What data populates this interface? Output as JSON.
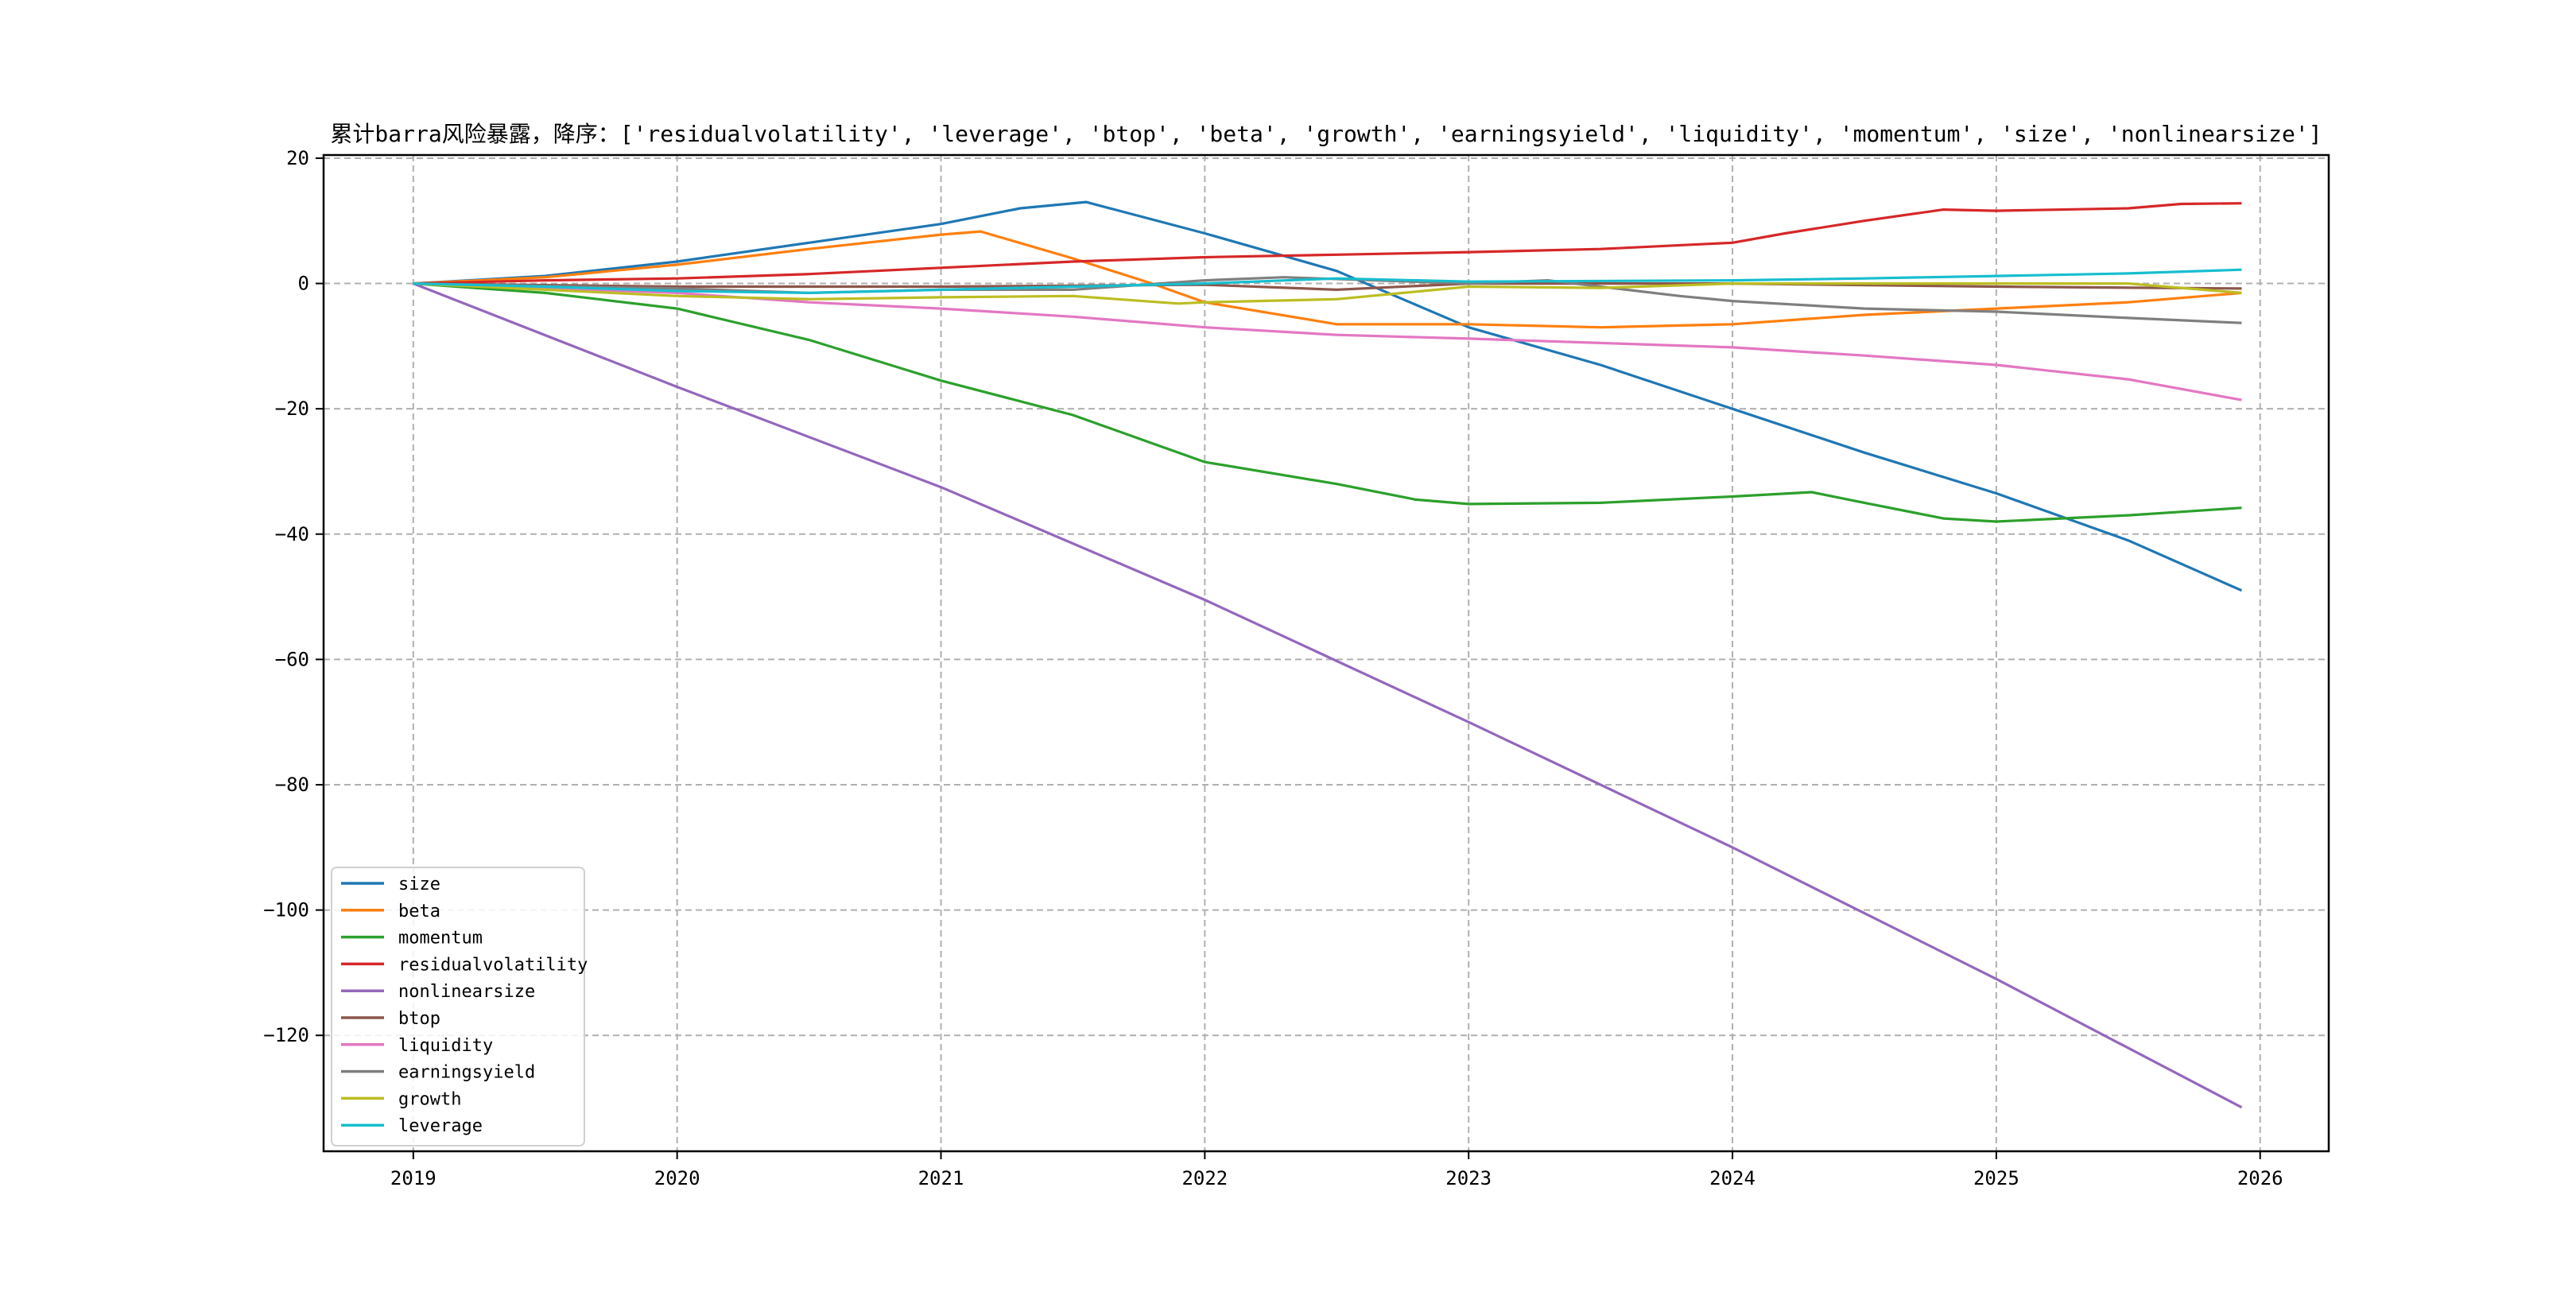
{
  "chart_data": {
    "type": "line",
    "title": "累计barra风险暴露，降序：['residualvolatility', 'leverage', 'btop', 'beta', 'growth', 'earningsyield', 'liquidity', 'momentum', 'size', 'nonlinearsize']",
    "xlabel": "",
    "ylabel": "",
    "xlim": [
      2018.66,
      2026.26
    ],
    "ylim": [
      -138.5,
      20.5
    ],
    "xticks": [
      2019,
      2020,
      2021,
      2022,
      2023,
      2024,
      2025,
      2026
    ],
    "xtick_labels": [
      "2019",
      "2020",
      "2021",
      "2022",
      "2023",
      "2024",
      "2025",
      "2026"
    ],
    "yticks": [
      20,
      0,
      -20,
      -40,
      -60,
      -80,
      -100,
      -120
    ],
    "ytick_labels": [
      "20",
      "0",
      "−20",
      "−40",
      "−60",
      "−80",
      "−100",
      "−120"
    ],
    "grid": true,
    "legend_position": "lower-left",
    "series": [
      {
        "name": "size",
        "color": "#1f77b4",
        "points": [
          [
            2019,
            0
          ],
          [
            2019.5,
            1.2
          ],
          [
            2020,
            3.5
          ],
          [
            2020.5,
            6.5
          ],
          [
            2021,
            9.5
          ],
          [
            2021.3,
            12
          ],
          [
            2021.55,
            13
          ],
          [
            2022,
            8
          ],
          [
            2022.5,
            2
          ],
          [
            2023,
            -7
          ],
          [
            2023.5,
            -13
          ],
          [
            2024,
            -20
          ],
          [
            2024.5,
            -27
          ],
          [
            2025,
            -33.5
          ],
          [
            2025.5,
            -41
          ],
          [
            2025.93,
            -49
          ]
        ]
      },
      {
        "name": "beta",
        "color": "#ff7f0e",
        "points": [
          [
            2019,
            0
          ],
          [
            2019.5,
            1
          ],
          [
            2020,
            3
          ],
          [
            2020.5,
            5.5
          ],
          [
            2021,
            7.8
          ],
          [
            2021.15,
            8.3
          ],
          [
            2021.5,
            4
          ],
          [
            2021.8,
            0
          ],
          [
            2022,
            -3
          ],
          [
            2022.5,
            -6.5
          ],
          [
            2023,
            -6.5
          ],
          [
            2023.5,
            -7
          ],
          [
            2024,
            -6.5
          ],
          [
            2024.5,
            -5
          ],
          [
            2025,
            -4
          ],
          [
            2025.5,
            -3
          ],
          [
            2025.93,
            -1.5
          ]
        ]
      },
      {
        "name": "momentum",
        "color": "#2ca02c",
        "points": [
          [
            2019,
            0
          ],
          [
            2019.5,
            -1.5
          ],
          [
            2020,
            -4
          ],
          [
            2020.5,
            -9
          ],
          [
            2021,
            -15.5
          ],
          [
            2021.5,
            -21
          ],
          [
            2021.8,
            -25.5
          ],
          [
            2022,
            -28.5
          ],
          [
            2022.5,
            -32
          ],
          [
            2022.8,
            -34.5
          ],
          [
            2023,
            -35.2
          ],
          [
            2023.5,
            -35
          ],
          [
            2024,
            -34
          ],
          [
            2024.3,
            -33.3
          ],
          [
            2024.5,
            -35
          ],
          [
            2024.8,
            -37.5
          ],
          [
            2025,
            -38
          ],
          [
            2025.5,
            -37
          ],
          [
            2025.93,
            -35.8
          ]
        ]
      },
      {
        "name": "residualvolatility",
        "color": "#d62728",
        "points": [
          [
            2019,
            0
          ],
          [
            2019.5,
            0.5
          ],
          [
            2020,
            0.8
          ],
          [
            2020.5,
            1.5
          ],
          [
            2021,
            2.5
          ],
          [
            2021.5,
            3.5
          ],
          [
            2022,
            4.2
          ],
          [
            2022.5,
            4.6
          ],
          [
            2023,
            5
          ],
          [
            2023.5,
            5.5
          ],
          [
            2024,
            6.5
          ],
          [
            2024.2,
            8
          ],
          [
            2024.5,
            10
          ],
          [
            2024.8,
            11.8
          ],
          [
            2025,
            11.6
          ],
          [
            2025.5,
            12
          ],
          [
            2025.7,
            12.7
          ],
          [
            2025.93,
            12.8
          ]
        ]
      },
      {
        "name": "nonlinearsize",
        "color": "#9467bd",
        "points": [
          [
            2019,
            0
          ],
          [
            2020,
            -16.5
          ],
          [
            2021,
            -32.5
          ],
          [
            2022,
            -50.5
          ],
          [
            2023,
            -70
          ],
          [
            2024,
            -90
          ],
          [
            2025,
            -111
          ],
          [
            2025.93,
            -131.5
          ]
        ]
      },
      {
        "name": "btop",
        "color": "#8c564b",
        "points": [
          [
            2019,
            0
          ],
          [
            2020,
            -0.5
          ],
          [
            2021,
            -0.5
          ],
          [
            2022,
            -0.2
          ],
          [
            2022.5,
            -1
          ],
          [
            2023,
            0
          ],
          [
            2024,
            0
          ],
          [
            2025,
            -0.5
          ],
          [
            2025.93,
            -0.8
          ]
        ]
      },
      {
        "name": "liquidity",
        "color": "#e377c2",
        "points": [
          [
            2019,
            0
          ],
          [
            2020,
            -1.5
          ],
          [
            2020.5,
            -3
          ],
          [
            2021,
            -4
          ],
          [
            2021.5,
            -5.3
          ],
          [
            2022,
            -7
          ],
          [
            2022.5,
            -8.2
          ],
          [
            2023,
            -8.8
          ],
          [
            2023.5,
            -9.5
          ],
          [
            2024,
            -10.2
          ],
          [
            2024.5,
            -11.5
          ],
          [
            2025,
            -13
          ],
          [
            2025.5,
            -15.3
          ],
          [
            2025.93,
            -18.6
          ]
        ]
      },
      {
        "name": "earningsyield",
        "color": "#7f7f7f",
        "points": [
          [
            2019,
            0
          ],
          [
            2020,
            -0.8
          ],
          [
            2020.5,
            -1.5
          ],
          [
            2021,
            -1
          ],
          [
            2021.5,
            -1
          ],
          [
            2022,
            0.5
          ],
          [
            2022.3,
            1
          ],
          [
            2023,
            0
          ],
          [
            2023.3,
            0.5
          ],
          [
            2023.8,
            -2
          ],
          [
            2024,
            -2.8
          ],
          [
            2024.5,
            -4
          ],
          [
            2025,
            -4.5
          ],
          [
            2025.5,
            -5.5
          ],
          [
            2025.93,
            -6.3
          ]
        ]
      },
      {
        "name": "growth",
        "color": "#bcbd22",
        "points": [
          [
            2019,
            0
          ],
          [
            2019.5,
            -1
          ],
          [
            2020,
            -2
          ],
          [
            2020.5,
            -2.5
          ],
          [
            2021,
            -2.2
          ],
          [
            2021.5,
            -2
          ],
          [
            2021.9,
            -3.2
          ],
          [
            2022,
            -3
          ],
          [
            2022.5,
            -2.5
          ],
          [
            2023,
            -0.5
          ],
          [
            2023.5,
            -0.7
          ],
          [
            2024,
            0
          ],
          [
            2025,
            0
          ],
          [
            2025.5,
            0
          ],
          [
            2025.93,
            -1.5
          ]
        ]
      },
      {
        "name": "leverage",
        "color": "#17becf",
        "points": [
          [
            2019,
            0
          ],
          [
            2019.5,
            -0.5
          ],
          [
            2020,
            -1.2
          ],
          [
            2020.5,
            -1.5
          ],
          [
            2021,
            -1
          ],
          [
            2021.5,
            -0.5
          ],
          [
            2022,
            0
          ],
          [
            2022.5,
            0.8
          ],
          [
            2023,
            0.3
          ],
          [
            2024,
            0.5
          ],
          [
            2024.5,
            0.8
          ],
          [
            2025,
            1.2
          ],
          [
            2025.5,
            1.6
          ],
          [
            2025.93,
            2.2
          ]
        ]
      }
    ]
  }
}
